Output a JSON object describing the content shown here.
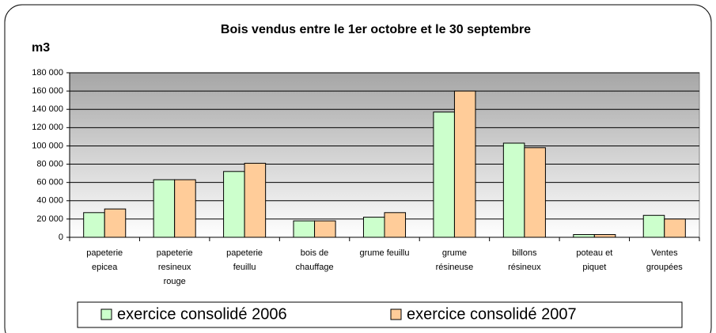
{
  "chart_data": {
    "type": "bar",
    "title": "Bois vendus entre le 1er octobre et le 30 septembre",
    "y_label": "m3",
    "categories": [
      "papeterie epicea",
      "papeterie resineux rouge",
      "papeterie feuillu",
      "bois de chauffage",
      "grume feuillu",
      "grume résineuse",
      "billons résineux",
      "poteau et piquet",
      "Ventes groupées"
    ],
    "series": [
      {
        "name": "exercice consolidé 2006",
        "color": "#ccffcc",
        "values": [
          27000,
          63000,
          72000,
          18000,
          22000,
          137000,
          103000,
          3000,
          24000
        ]
      },
      {
        "name": "exercice consolidé 2007",
        "color": "#ffcc99",
        "values": [
          31000,
          63000,
          81000,
          18000,
          27000,
          160000,
          98000,
          3000,
          20000
        ]
      }
    ],
    "ylim": [
      0,
      180000
    ],
    "yticks": [
      0,
      {
        "value": 20000,
        "label": "20 000"
      },
      {
        "value": 40000,
        "label": "40 000"
      },
      {
        "value": 60000,
        "label": "60 000"
      },
      {
        "value": 80000,
        "label": "80 000"
      },
      {
        "value": 100000,
        "label": "100 000"
      },
      {
        "value": 120000,
        "label": "120 000"
      },
      {
        "value": 140000,
        "label": "140 000"
      },
      {
        "value": 160000,
        "label": "160 000"
      },
      {
        "value": 180000,
        "label": "180 000"
      }
    ],
    "grid": true,
    "legend": "bottom"
  }
}
